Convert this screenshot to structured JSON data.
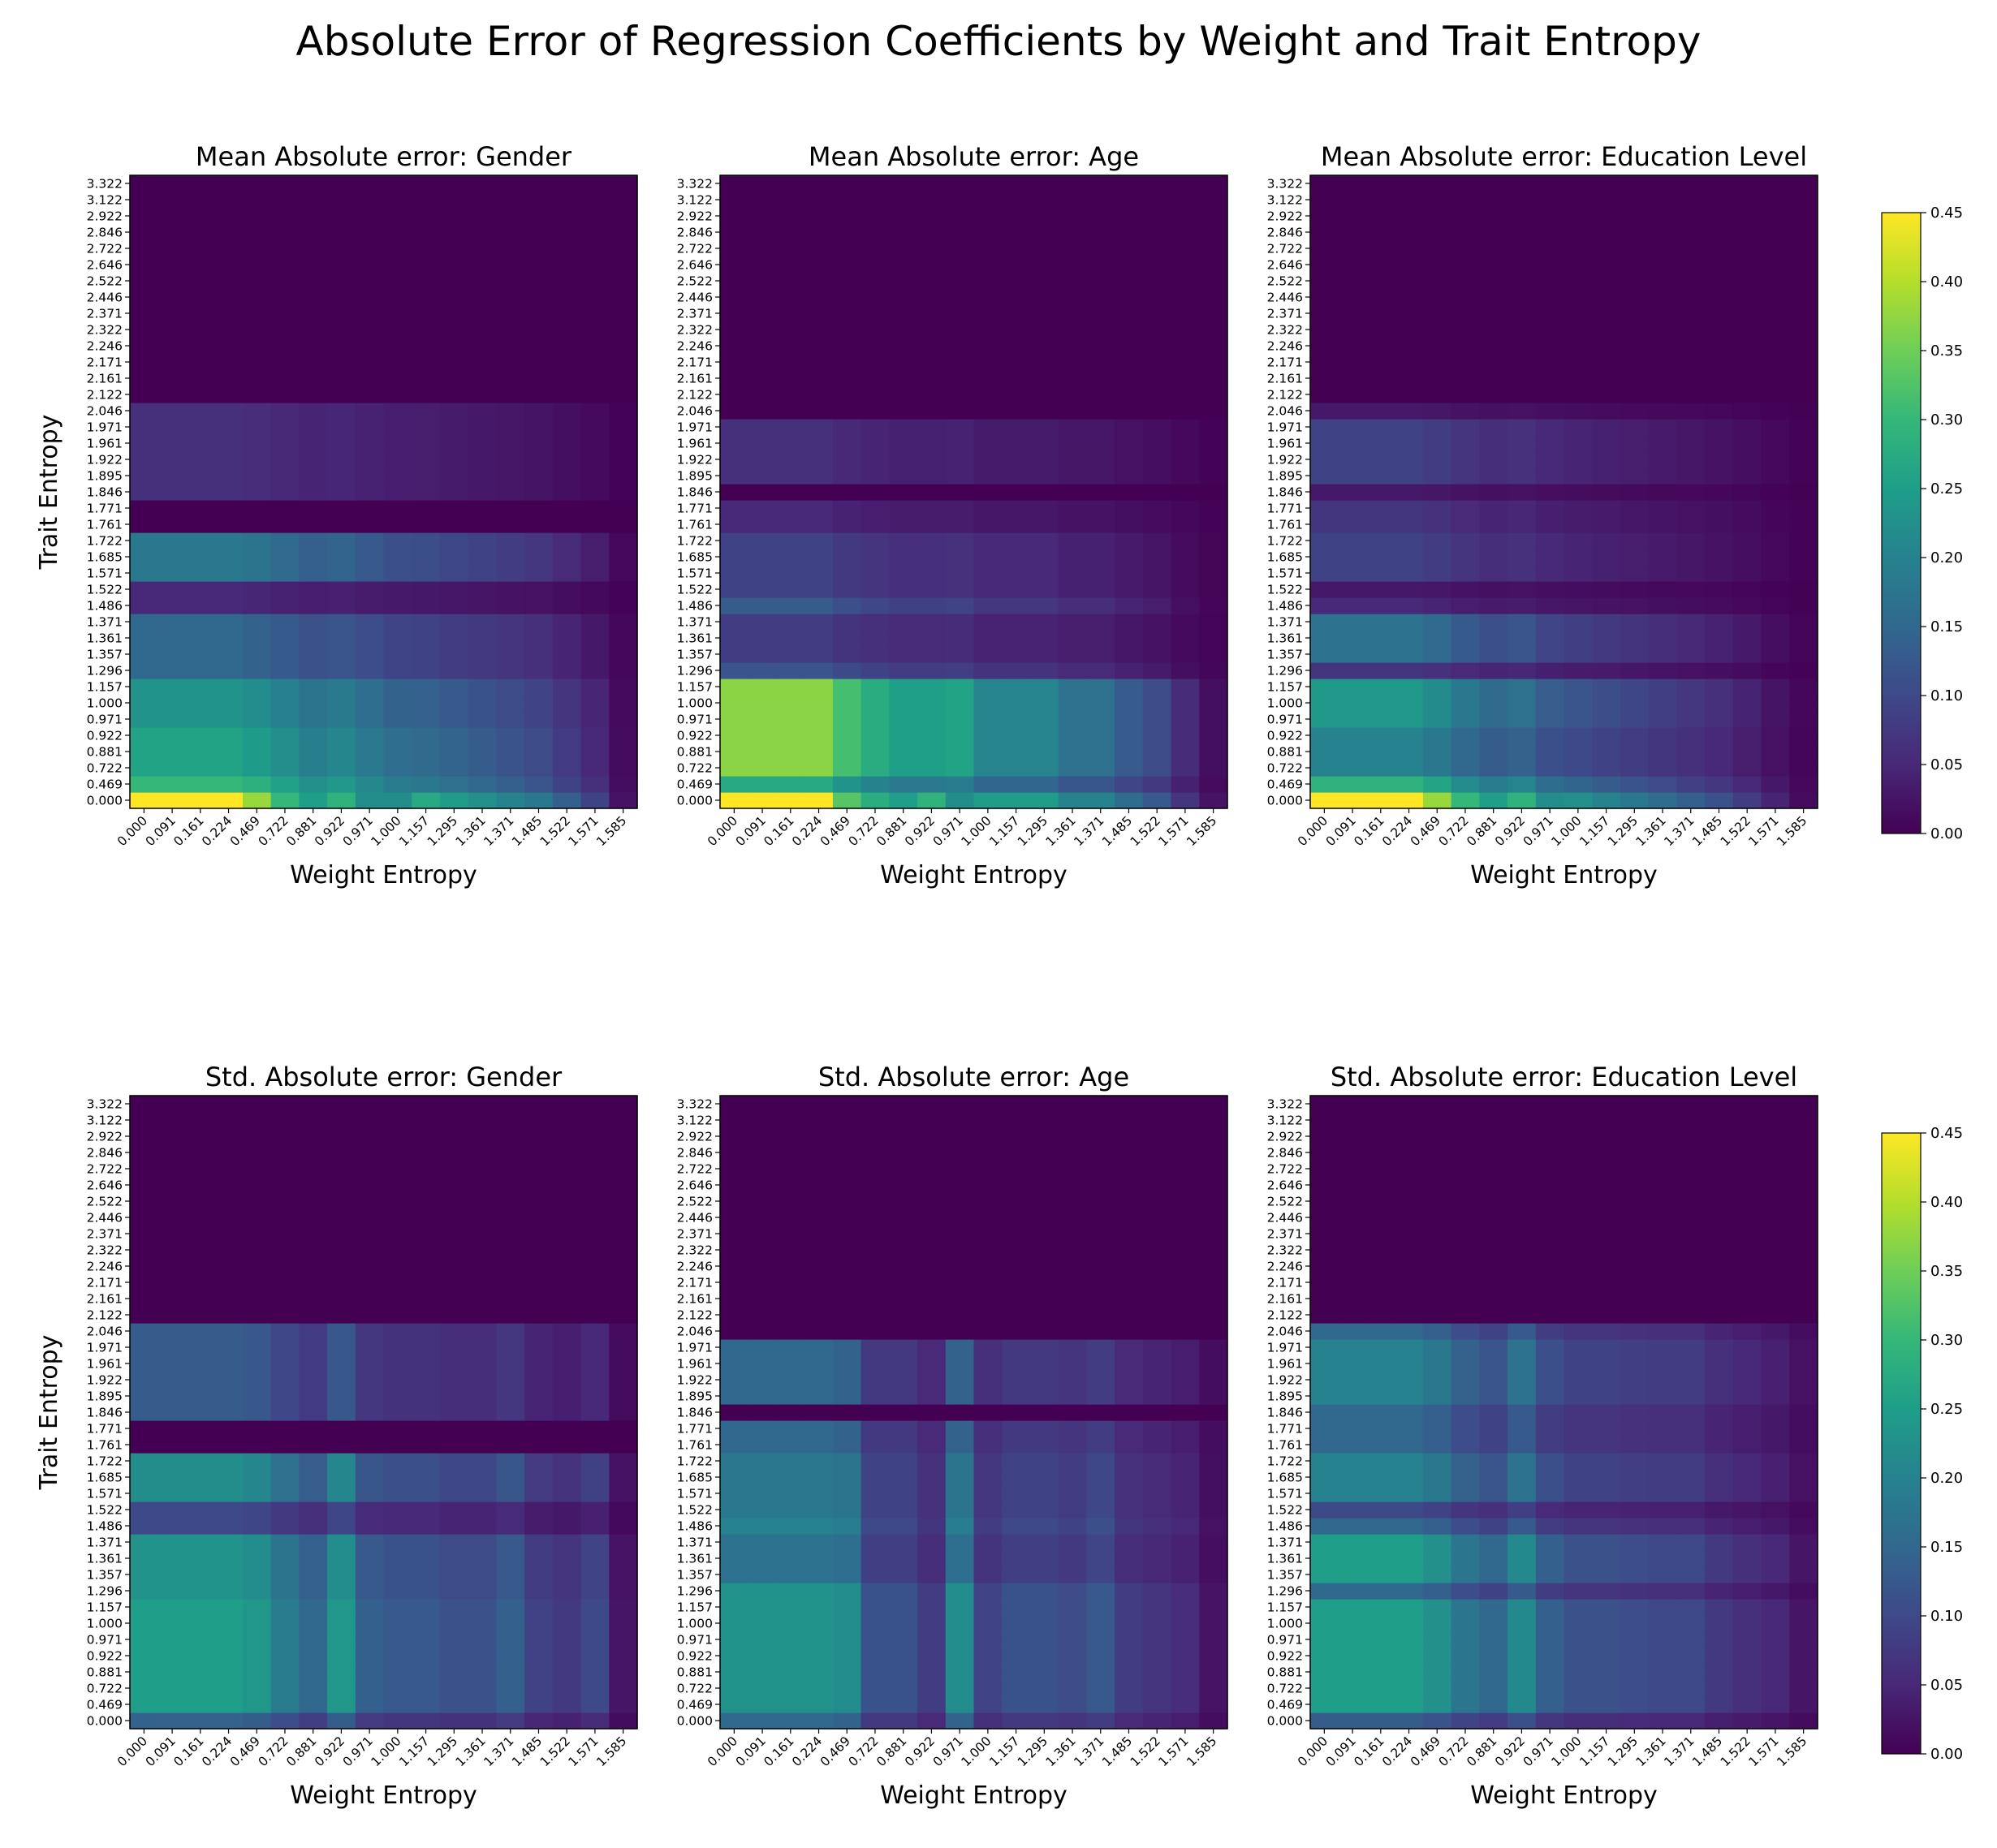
{
  "figure": {
    "title": "Absolute Error of Regression Coefficients by Weight and Trait Entropy"
  },
  "colormap": {
    "name": "viridis",
    "stops": [
      "#440154",
      "#482878",
      "#3e4989",
      "#31688e",
      "#26828e",
      "#1f9e89",
      "#35b779",
      "#6ece58",
      "#b5de2b",
      "#fde725"
    ]
  },
  "colorbar": {
    "range": [
      0.0,
      0.45
    ],
    "ticks": [
      "0.00",
      "0.05",
      "0.10",
      "0.15",
      "0.20",
      "0.25",
      "0.30",
      "0.35",
      "0.40",
      "0.45"
    ]
  },
  "axes": {
    "x_ticks": [
      "0.000",
      "0.091",
      "0.161",
      "0.224",
      "0.469",
      "0.722",
      "0.881",
      "0.922",
      "0.971",
      "1.000",
      "1.157",
      "1.295",
      "1.361",
      "1.371",
      "1.485",
      "1.522",
      "1.571",
      "1.585"
    ],
    "y_ticks": [
      "0.000",
      "0.469",
      "0.722",
      "0.881",
      "0.922",
      "0.971",
      "1.000",
      "1.157",
      "1.296",
      "1.357",
      "1.361",
      "1.371",
      "1.486",
      "1.522",
      "1.571",
      "1.685",
      "1.722",
      "1.761",
      "1.771",
      "1.846",
      "1.895",
      "1.922",
      "1.961",
      "1.971",
      "2.046",
      "2.122",
      "2.161",
      "2.171",
      "2.246",
      "2.322",
      "2.371",
      "2.446",
      "2.522",
      "2.646",
      "2.722",
      "2.846",
      "2.922",
      "3.122",
      "3.322"
    ]
  },
  "chart_data": [
    {
      "type": "heatmap",
      "title": "Mean Absolute error: Gender",
      "xlabel": "Weight Entropy",
      "ylabel": "Trait Entropy",
      "row_scale": [
        0.45,
        0.3,
        0.26,
        0.26,
        0.26,
        0.23,
        0.23,
        0.23,
        0.15,
        0.15,
        0.15,
        0.15,
        0.05,
        0.05,
        0.18,
        0.18,
        0.18,
        0.0,
        0.0,
        0.06,
        0.06,
        0.06,
        0.06,
        0.06,
        0.06,
        0.0,
        0.0,
        0.0,
        0.0,
        0.0,
        0.0,
        0.0,
        0.0,
        0.0,
        0.0,
        0.0,
        0.0,
        0.0,
        0.0
      ],
      "col_scale": [
        1.0,
        1.0,
        1.0,
        1.0,
        0.95,
        0.85,
        0.75,
        0.8,
        0.7,
        0.62,
        0.6,
        0.55,
        0.5,
        0.45,
        0.4,
        0.3,
        0.2,
        0.05
      ],
      "special_cells": [
        [
          0,
          4,
          0.38
        ],
        [
          0,
          5,
          0.3
        ],
        [
          0,
          6,
          0.25
        ],
        [
          0,
          7,
          0.29
        ],
        [
          0,
          8,
          0.22
        ],
        [
          0,
          9,
          0.22
        ]
      ]
    },
    {
      "type": "heatmap",
      "title": "Mean Absolute error: Age",
      "xlabel": "Weight Entropy",
      "ylabel": "",
      "row_scale": [
        0.45,
        0.27,
        0.37,
        0.37,
        0.37,
        0.37,
        0.37,
        0.37,
        0.12,
        0.08,
        0.08,
        0.08,
        0.13,
        0.09,
        0.09,
        0.09,
        0.09,
        0.05,
        0.05,
        0.0,
        0.06,
        0.06,
        0.06,
        0.06,
        0.0,
        0.0,
        0.0,
        0.0,
        0.0,
        0.0,
        0.0,
        0.0,
        0.0,
        0.0,
        0.0,
        0.0,
        0.0,
        0.0,
        0.0
      ],
      "col_scale": [
        1.0,
        1.0,
        1.0,
        1.0,
        0.85,
        0.75,
        0.68,
        0.68,
        0.7,
        0.55,
        0.55,
        0.55,
        0.45,
        0.45,
        0.35,
        0.28,
        0.15,
        0.05
      ],
      "special_cells": [
        [
          0,
          4,
          0.33
        ],
        [
          0,
          5,
          0.28
        ],
        [
          0,
          6,
          0.25
        ],
        [
          0,
          7,
          0.29
        ],
        [
          0,
          8,
          0.22
        ]
      ]
    },
    {
      "type": "heatmap",
      "title": "Mean Absolute error: Education Level",
      "xlabel": "Weight Entropy",
      "ylabel": "",
      "row_scale": [
        0.45,
        0.29,
        0.2,
        0.2,
        0.2,
        0.24,
        0.24,
        0.24,
        0.07,
        0.17,
        0.17,
        0.17,
        0.05,
        0.03,
        0.09,
        0.09,
        0.09,
        0.07,
        0.07,
        0.03,
        0.09,
        0.09,
        0.09,
        0.09,
        0.03,
        0.0,
        0.0,
        0.0,
        0.0,
        0.0,
        0.0,
        0.0,
        0.0,
        0.0,
        0.0,
        0.0,
        0.0,
        0.0,
        0.0
      ],
      "col_scale": [
        1.0,
        1.0,
        1.0,
        1.0,
        0.9,
        0.75,
        0.65,
        0.7,
        0.55,
        0.5,
        0.45,
        0.4,
        0.35,
        0.3,
        0.25,
        0.18,
        0.1,
        0.03
      ],
      "special_cells": [
        [
          0,
          4,
          0.38
        ],
        [
          0,
          5,
          0.3
        ],
        [
          0,
          6,
          0.25
        ],
        [
          0,
          7,
          0.29
        ],
        [
          0,
          8,
          0.22
        ]
      ]
    },
    {
      "type": "heatmap",
      "title": "Std. Absolute error: Gender",
      "xlabel": "Weight Entropy",
      "ylabel": "Trait Entropy",
      "row_scale": [
        0.14,
        0.25,
        0.25,
        0.25,
        0.25,
        0.25,
        0.25,
        0.25,
        0.23,
        0.23,
        0.23,
        0.23,
        0.1,
        0.1,
        0.22,
        0.22,
        0.22,
        0.0,
        0.0,
        0.13,
        0.13,
        0.13,
        0.13,
        0.13,
        0.13,
        0.0,
        0.0,
        0.0,
        0.0,
        0.0,
        0.0,
        0.0,
        0.0,
        0.0,
        0.0,
        0.0,
        0.0,
        0.0,
        0.0
      ],
      "col_scale": [
        1.0,
        1.0,
        1.0,
        1.0,
        0.95,
        0.75,
        0.6,
        0.95,
        0.55,
        0.5,
        0.5,
        0.45,
        0.45,
        0.55,
        0.35,
        0.3,
        0.4,
        0.1
      ],
      "special_cells": []
    },
    {
      "type": "heatmap",
      "title": "Std. Absolute error: Age",
      "xlabel": "Weight Entropy",
      "ylabel": "",
      "row_scale": [
        0.15,
        0.23,
        0.23,
        0.23,
        0.23,
        0.23,
        0.23,
        0.23,
        0.23,
        0.17,
        0.17,
        0.17,
        0.2,
        0.18,
        0.18,
        0.18,
        0.18,
        0.15,
        0.15,
        0.0,
        0.15,
        0.15,
        0.15,
        0.15,
        0.0,
        0.0,
        0.0,
        0.0,
        0.0,
        0.0,
        0.0,
        0.0,
        0.0,
        0.0,
        0.0,
        0.0,
        0.0,
        0.0,
        0.0
      ],
      "col_scale": [
        1.0,
        1.0,
        1.0,
        1.0,
        0.95,
        0.5,
        0.5,
        0.35,
        0.95,
        0.4,
        0.5,
        0.5,
        0.45,
        0.55,
        0.35,
        0.3,
        0.25,
        0.1
      ],
      "special_cells": []
    },
    {
      "type": "heatmap",
      "title": "Std. Absolute error: Education Level",
      "xlabel": "Weight Entropy",
      "ylabel": "",
      "row_scale": [
        0.13,
        0.25,
        0.25,
        0.25,
        0.25,
        0.25,
        0.25,
        0.25,
        0.15,
        0.25,
        0.25,
        0.25,
        0.15,
        0.1,
        0.2,
        0.2,
        0.2,
        0.15,
        0.15,
        0.15,
        0.2,
        0.2,
        0.2,
        0.2,
        0.15,
        0.0,
        0.0,
        0.0,
        0.0,
        0.0,
        0.0,
        0.0,
        0.0,
        0.0,
        0.0,
        0.0,
        0.0,
        0.0,
        0.0
      ],
      "col_scale": [
        1.0,
        1.0,
        1.0,
        1.0,
        0.9,
        0.7,
        0.6,
        0.85,
        0.55,
        0.45,
        0.45,
        0.42,
        0.4,
        0.4,
        0.3,
        0.25,
        0.2,
        0.1
      ],
      "special_cells": []
    }
  ]
}
